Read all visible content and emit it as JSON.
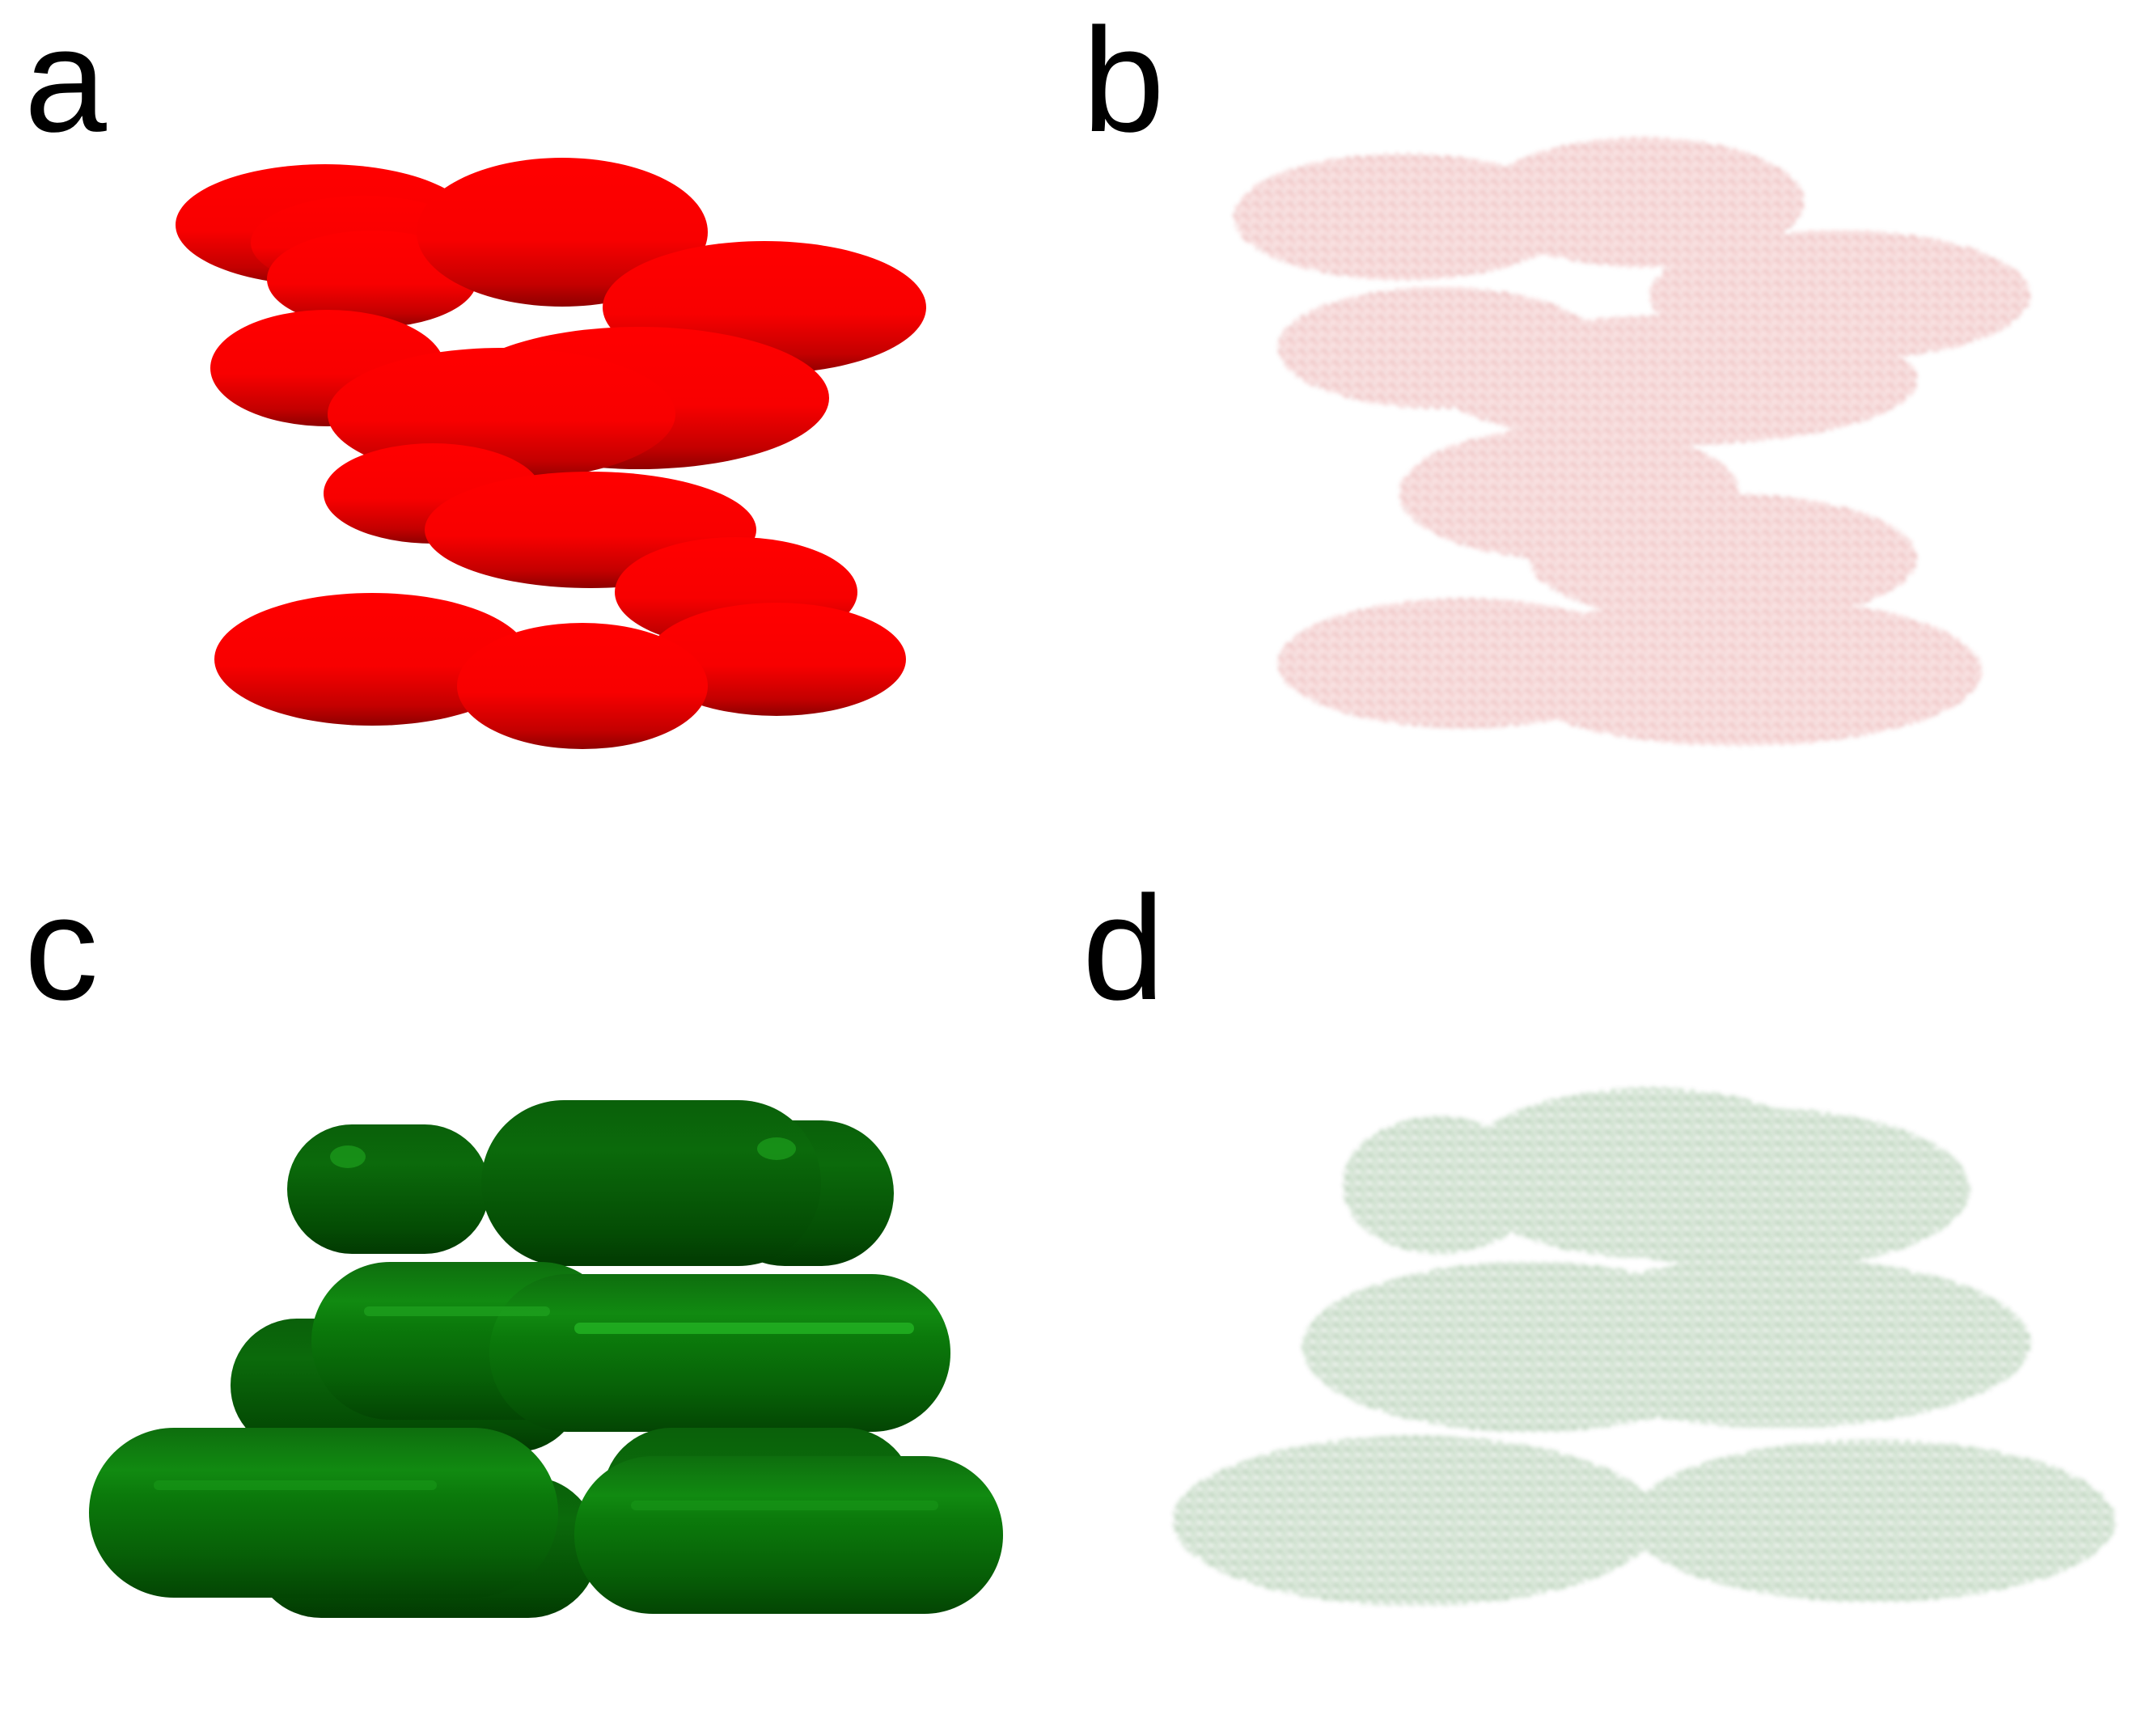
{
  "figure": {
    "panels": [
      {
        "label": "a",
        "shape": "ellipsoid",
        "style": "solid surface",
        "color": "#ff0000"
      },
      {
        "label": "b",
        "shape": "ellipsoid",
        "style": "point cloud",
        "color": "#c00000"
      },
      {
        "label": "c",
        "shape": "capsule",
        "style": "solid surface",
        "color": "#006400"
      },
      {
        "label": "d",
        "shape": "capsule",
        "style": "point cloud",
        "color": "#0a5a0a"
      }
    ]
  }
}
